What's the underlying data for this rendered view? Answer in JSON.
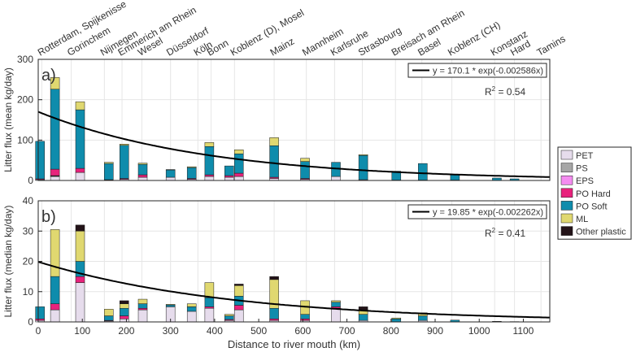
{
  "chart_data": {
    "type": "stacked-bar",
    "x_title": "Distance to river mouth (km)",
    "x_range": [
      0,
      1160
    ],
    "x_ticks": [
      0,
      100,
      200,
      300,
      400,
      500,
      600,
      700,
      800,
      900,
      1000,
      1100
    ],
    "locations": [
      {
        "name": "Rotterdam, Spijkenisse",
        "km": 8
      },
      {
        "name": "Gorinchem",
        "km": 75
      },
      {
        "name": "Nijmegen",
        "km": 150
      },
      {
        "name": "Emmerich am Rhein",
        "km": 190
      },
      {
        "name": "Wesel",
        "km": 235
      },
      {
        "name": "Düsseldorf",
        "km": 300
      },
      {
        "name": "Köln",
        "km": 362
      },
      {
        "name": "Bonn",
        "km": 392
      },
      {
        "name": "Koblenz (D), Mosel",
        "km": 445
      },
      {
        "name": "Mainz",
        "km": 535
      },
      {
        "name": "Mannheim",
        "km": 608
      },
      {
        "name": "Karlsruhe",
        "km": 672
      },
      {
        "name": "Strasbourg",
        "km": 735
      },
      {
        "name": "Breisach am Rhein",
        "km": 810
      },
      {
        "name": "Basel",
        "km": 870
      },
      {
        "name": "Koblenz (CH)",
        "km": 938
      },
      {
        "name": "Konstanz",
        "km": 1035
      },
      {
        "name": "Hard",
        "km": 1080
      },
      {
        "name": "Tamins",
        "km": 1140
      }
    ],
    "categories": [
      "PET",
      "PS",
      "EPS",
      "PO Hard",
      "PO Soft",
      "ML",
      "Other plastic"
    ],
    "colors": [
      "#e6dcec",
      "#a6a6a6",
      "#f48cf0",
      "#e8227c",
      "#0f8cac",
      "#e0d870",
      "#231318"
    ],
    "legend": {
      "position": "right",
      "labels": [
        "PET",
        "PS",
        "EPS",
        "PO Hard",
        "PO Soft",
        "ML",
        "Other plastic"
      ]
    },
    "panels": [
      {
        "label": "a)",
        "ylabel": "Litter flux (mean kg/day)",
        "ylim": [
          0,
          300
        ],
        "yticks": [
          0,
          100,
          200,
          300
        ],
        "fit_label": "y = 170.1 * exp(-0.002586x)",
        "r2_label": "R",
        "r2_sup": "2",
        "r2_value": " = 0.54",
        "fit": {
          "a": 170.1,
          "b": -0.002586
        },
        "bars": [
          {
            "x": 4,
            "values": [
              2,
              0,
              0,
              2,
              93,
              0,
              0
            ]
          },
          {
            "x": 38,
            "values": [
              10,
              1,
              1,
              16,
              198,
              29,
              0
            ]
          },
          {
            "x": 95,
            "values": [
              20,
              0,
              0,
              10,
              145,
              20,
              0
            ]
          },
          {
            "x": 160,
            "values": [
              1,
              0,
              0,
              1,
              40,
              3,
              0
            ]
          },
          {
            "x": 195,
            "values": [
              3,
              0,
              0,
              2,
              82,
              3,
              0
            ]
          },
          {
            "x": 237,
            "values": [
              8,
              0,
              0,
              6,
              26,
              3,
              0
            ]
          },
          {
            "x": 300,
            "values": [
              8,
              0,
              0,
              0,
              18,
              1,
              0
            ]
          },
          {
            "x": 348,
            "values": [
              3,
              0,
              0,
              2,
              27,
              2,
              0
            ]
          },
          {
            "x": 388,
            "values": [
              10,
              0,
              0,
              4,
              70,
              10,
              0
            ]
          },
          {
            "x": 433,
            "values": [
              8,
              0,
              0,
              4,
              24,
              0,
              0
            ]
          },
          {
            "x": 455,
            "values": [
              10,
              0,
              0,
              8,
              48,
              10,
              0
            ]
          },
          {
            "x": 535,
            "values": [
              5,
              0,
              0,
              3,
              78,
              20,
              0
            ]
          },
          {
            "x": 605,
            "values": [
              3,
              0,
              0,
              2,
              42,
              8,
              0
            ]
          },
          {
            "x": 675,
            "values": [
              10,
              0,
              0,
              0,
              35,
              0,
              0
            ]
          },
          {
            "x": 737,
            "values": [
              2,
              0,
              0,
              0,
              60,
              2,
              0
            ]
          },
          {
            "x": 812,
            "values": [
              1,
              0,
              0,
              0,
              22,
              0,
              0
            ]
          },
          {
            "x": 872,
            "values": [
              1,
              0,
              0,
              0,
              41,
              0,
              0
            ]
          },
          {
            "x": 945,
            "values": [
              1,
              0,
              0,
              0,
              14,
              0,
              0
            ]
          },
          {
            "x": 1040,
            "values": [
              0,
              0,
              0,
              0,
              6,
              0,
              0
            ]
          },
          {
            "x": 1080,
            "values": [
              0,
              0,
              0,
              0,
              4,
              0,
              0
            ]
          },
          {
            "x": 1140,
            "values": [
              0,
              0,
              0,
              0,
              0.5,
              0,
              0
            ]
          }
        ]
      },
      {
        "label": "b)",
        "ylabel": "Litter flux (median kg/day)",
        "ylim": [
          0,
          40
        ],
        "yticks": [
          0,
          10,
          20,
          30,
          40
        ],
        "fit_label": "y = 19.85 * exp(-0.002262x)",
        "r2_label": "R",
        "r2_sup": "2",
        "r2_value": " = 0.41",
        "fit": {
          "a": 19.85,
          "b": -0.002262
        },
        "bars": [
          {
            "x": 4,
            "values": [
              0.5,
              0,
              0,
              0.5,
              4,
              0,
              0
            ]
          },
          {
            "x": 38,
            "values": [
              4,
              0,
              0,
              2,
              9,
              15.5,
              0
            ]
          },
          {
            "x": 95,
            "values": [
              13,
              0,
              0,
              2,
              5,
              10,
              2
            ]
          },
          {
            "x": 160,
            "values": [
              0.3,
              0,
              0,
              0.2,
              1.5,
              2.2,
              0
            ]
          },
          {
            "x": 195,
            "values": [
              1,
              0,
              0,
              1,
              2.5,
              1.5,
              1
            ]
          },
          {
            "x": 237,
            "values": [
              4,
              0,
              0,
              0.5,
              1.5,
              1.5,
              0
            ]
          },
          {
            "x": 300,
            "values": [
              5,
              0,
              0,
              0,
              0.6,
              0.2,
              0
            ]
          },
          {
            "x": 348,
            "values": [
              3.5,
              0,
              0,
              0,
              1.5,
              1,
              0
            ]
          },
          {
            "x": 388,
            "values": [
              4.5,
              0,
              0,
              0.5,
              3,
              5,
              0
            ]
          },
          {
            "x": 433,
            "values": [
              0.5,
              0,
              0,
              0.3,
              1.2,
              0.5,
              0
            ]
          },
          {
            "x": 455,
            "values": [
              4,
              0,
              0,
              1.5,
              3,
              3.5,
              0.5
            ]
          },
          {
            "x": 535,
            "values": [
              0.5,
              0,
              0,
              0.5,
              3.5,
              9.5,
              1
            ]
          },
          {
            "x": 605,
            "values": [
              0.5,
              0,
              0,
              0.5,
              1.5,
              4.5,
              0
            ]
          },
          {
            "x": 675,
            "values": [
              4.5,
              0,
              0,
              0.5,
              1.5,
              0.5,
              0
            ]
          },
          {
            "x": 737,
            "values": [
              0.5,
              0,
              0,
              0,
              2,
              1.5,
              1
            ]
          },
          {
            "x": 812,
            "values": [
              0,
              0,
              0,
              0,
              1,
              0.3,
              0
            ]
          },
          {
            "x": 872,
            "values": [
              0.5,
              0,
              0,
              0,
              1.5,
              1,
              0
            ]
          },
          {
            "x": 945,
            "values": [
              0,
              0,
              0,
              0,
              0.6,
              0,
              0
            ]
          },
          {
            "x": 1040,
            "values": [
              0,
              0,
              0,
              0,
              0.2,
              0,
              0
            ]
          },
          {
            "x": 1080,
            "values": [
              0,
              0,
              0,
              0,
              0.1,
              0,
              0
            ]
          },
          {
            "x": 1140,
            "values": [
              0,
              0,
              0,
              0,
              0.05,
              0,
              0
            ]
          }
        ]
      }
    ]
  }
}
